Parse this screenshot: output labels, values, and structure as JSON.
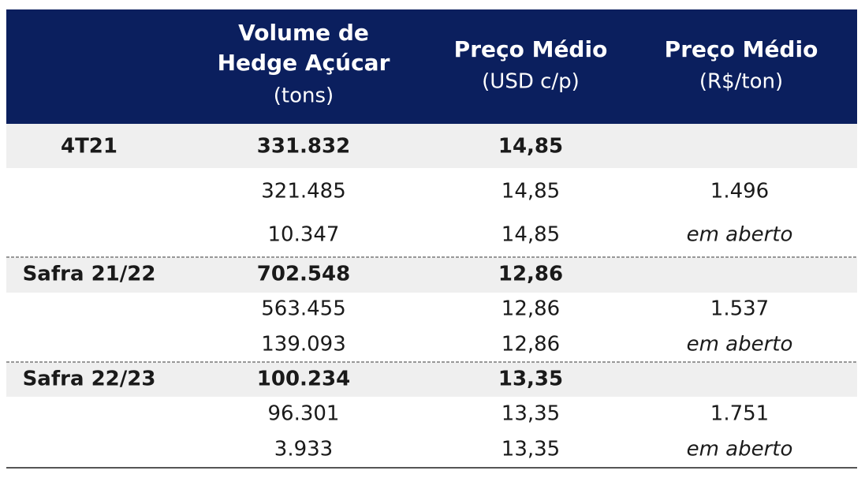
{
  "header": {
    "volume": {
      "lines": [
        "Volume de",
        "Hedge Açúcar"
      ],
      "unit": "(tons)"
    },
    "usd": {
      "title": "Preço Médio",
      "unit": "(USD c/p)"
    },
    "brl": {
      "title": "Preço Médio",
      "unit": "(R$/ton)"
    }
  },
  "rows": [
    {
      "label": "4T21",
      "volume": "331.832",
      "usd": "14,85"
    },
    {
      "volume": "321.485",
      "usd": "14,85",
      "brl": "1.496"
    },
    {
      "volume": "10.347",
      "usd": "14,85",
      "brl": "em aberto"
    },
    {
      "label": "Safra 21/22",
      "volume": "702.548",
      "usd": "12,86"
    },
    {
      "volume": "563.455",
      "usd": "12,86",
      "brl": "1.537"
    },
    {
      "volume": "139.093",
      "usd": "12,86",
      "brl": "em aberto"
    },
    {
      "label": "Safra 22/23",
      "volume": "100.234",
      "usd": "13,35"
    },
    {
      "volume": "96.301",
      "usd": "13,35",
      "brl": "1.751"
    },
    {
      "volume": "3.933",
      "usd": "13,35",
      "brl": "em aberto"
    }
  ]
}
